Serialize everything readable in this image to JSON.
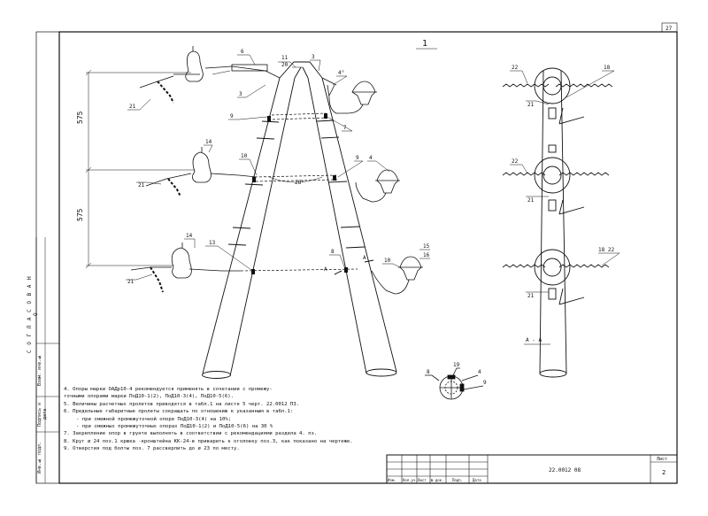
{
  "sheet_corner": "27",
  "view_title": "1",
  "section_title": "A - A",
  "section_marks": [
    "A",
    "A"
  ],
  "dimensions": [
    "575",
    "575"
  ],
  "angle_labels": [
    "28°",
    "4°"
  ],
  "part_labels": {
    "p6": "6",
    "p11": "11",
    "p20": "20",
    "p3a": "3",
    "p3b": "3",
    "p4a": "4°",
    "p21a": "21",
    "p21b": "21",
    "p21c": "21",
    "p9a": "9",
    "p9b": "9",
    "p14a": "14",
    "p14b": "14",
    "p10a": "10",
    "p10b": "10",
    "p7": "7",
    "p4b": "4",
    "p13": "13",
    "p8": "8",
    "p15": "15",
    "p16": "16",
    "r22a": "22",
    "r18a": "18",
    "r21a": "21",
    "r22b": "22",
    "r21b": "21",
    "r18b": "18 22",
    "r21c": "21",
    "s8": "8",
    "s19": "19",
    "s4": "4",
    "s9": "9"
  },
  "sidebar": {
    "agreed": "С О Г Л А С О В А Н О",
    "inv_sub": "Взам. инв.№",
    "sign_date": "Подпись и дата",
    "inv_orig": "Инв.№ подл."
  },
  "notes": [
    "4. Опоры марки ОАДр10-4  рекомендуется применять в  сочетании с промежу-",
    "   точными опорами марки ПоД10-1(2), ПоД10-3(4), ПоД10-5(6).",
    "5. Величины расчетных пролетов приводятся в табл.1 на листе 5 черт. 22.0012 ПЗ.",
    "6. Предельные габаритные пролеты сокращать по отношению к указанным в табл.1:",
    "   - при смежной промежуточной опоре ПоД10-3(4) на 10%;",
    "   - при смежных промежуточных опорах ПоД10-1(2) и ПоД10-5(6) на 30 %",
    "7. Закрепление опор в грунте выполнять в соответствии с рекомендациями раздела 4. пз.",
    "8. Круг ø 24 поз.1 крюка -кронштейна КК-24-в приварить к оголовку поз.3, как показано на чертеже.",
    "9. Отверстия под болты поз. 7 рассверлить до ø 23 по месту."
  ],
  "title_block": {
    "code": "22.0012 08",
    "sheet_label": "Лист",
    "sheet_no": "2",
    "cols": [
      "Изм.",
      "Кол.уч.",
      "Лист",
      "№ док.",
      "Подп.",
      "Дата"
    ]
  }
}
